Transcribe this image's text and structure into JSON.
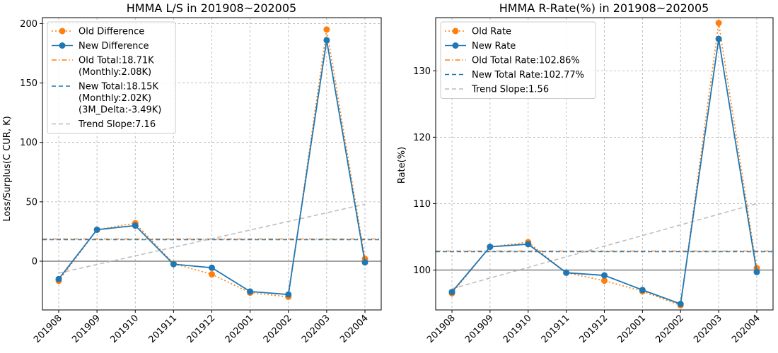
{
  "colors": {
    "old": "#ff7f0e",
    "new": "#1f77b4",
    "trend": "#bbbbbb",
    "zero": "#808080",
    "grid": "#b0b0b0"
  },
  "chart_data": [
    {
      "type": "line",
      "title": "HMMA L/S in 201908~202005",
      "xlabel": "",
      "ylabel": "Loss/Surplus(C CUR, K)",
      "categories": [
        "201908",
        "201909",
        "201910",
        "201911",
        "201912",
        "202001",
        "202002",
        "202003",
        "202004"
      ],
      "ylim": [
        -41,
        205
      ],
      "yticks": [
        0,
        50,
        100,
        150,
        200
      ],
      "grid": true,
      "legend_position": "top-left",
      "series": [
        {
          "name": "Old Difference",
          "values": [
            -16.5,
            26.5,
            32,
            -2,
            -11,
            -26.5,
            -30,
            195,
            2
          ],
          "style": "dotted-marker",
          "color": "old"
        },
        {
          "name": "New Difference",
          "values": [
            -15,
            26.5,
            30,
            -2.5,
            -5.5,
            -25.5,
            -28,
            186,
            -1
          ],
          "style": "solid-marker",
          "color": "new"
        }
      ],
      "reference_lines": [
        {
          "name": "Old Total:18.71K\n(Monthly:2.08K)",
          "value": 18.71,
          "style": "dashdot",
          "color": "old"
        },
        {
          "name": "New Total:18.15K\n(Monthly:2.02K)\n(3M_Delta:-3.49K)",
          "value": 18.15,
          "style": "dashed",
          "color": "new"
        },
        {
          "name": "Trend Slope:7.16",
          "from": -10,
          "to": 48,
          "style": "dashed",
          "color": "trend"
        }
      ],
      "zero_line": 0
    },
    {
      "type": "line",
      "title": "HMMA R-Rate(%) in 201908~202005",
      "xlabel": "",
      "ylabel": "Rate(%)",
      "categories": [
        "201908",
        "201909",
        "201910",
        "201911",
        "201912",
        "202001",
        "202002",
        "202003",
        "202004"
      ],
      "ylim": [
        94,
        138
      ],
      "yticks": [
        100,
        110,
        120,
        130
      ],
      "grid": true,
      "legend_position": "top-left",
      "series": [
        {
          "name": "Old Rate",
          "values": [
            96.5,
            103.5,
            104.2,
            99.6,
            98.4,
            96.8,
            94.7,
            137.2,
            100.3
          ],
          "style": "dotted-marker",
          "color": "old"
        },
        {
          "name": "New Rate",
          "values": [
            96.7,
            103.5,
            103.9,
            99.6,
            99.2,
            97.0,
            94.9,
            134.8,
            99.7
          ],
          "style": "solid-marker",
          "color": "new"
        }
      ],
      "reference_lines": [
        {
          "name": "Old Total Rate:102.86%",
          "value": 102.86,
          "style": "dashdot",
          "color": "old"
        },
        {
          "name": "New Total Rate:102.77%",
          "value": 102.77,
          "style": "dashed",
          "color": "new"
        },
        {
          "name": "Trend Slope:1.56",
          "from": 97.2,
          "to": 110,
          "style": "dashed",
          "color": "trend"
        }
      ],
      "zero_line": 100
    }
  ]
}
